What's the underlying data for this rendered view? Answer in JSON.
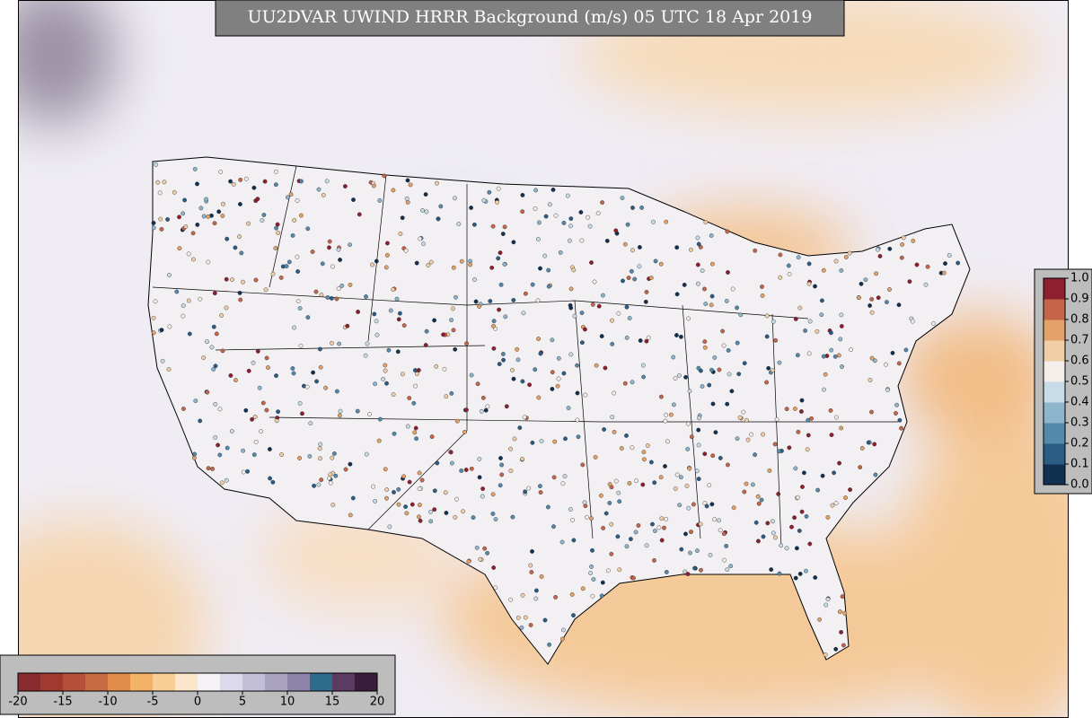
{
  "title": "UU2DVAR UWIND HRRR Background (m/s) 05 UTC 18 Apr 2019",
  "wind_colorbar": {
    "lim": [
      -20,
      20
    ],
    "ticks": [
      -20,
      -15,
      -10,
      -5,
      0,
      5,
      10,
      15,
      20
    ],
    "colors": [
      "#8a2b2e",
      "#a0392f",
      "#b4503a",
      "#c56a42",
      "#e08d4c",
      "#f3b266",
      "#f8cd96",
      "#fbe6cc",
      "#f4f2f5",
      "#dcd9ea",
      "#c3bfd9",
      "#aaa3c2",
      "#8d84a8",
      "#2e6b8c",
      "#5d3a62",
      "#3a1c3c"
    ]
  },
  "obs_colorbar": {
    "lim": [
      0,
      1
    ],
    "ticks": [
      {
        "value": 0,
        "label": "0.0"
      },
      0.1,
      0.2,
      0.3,
      0.4,
      0.5,
      0.6,
      0.7,
      0.8,
      0.9,
      {
        "value": 1,
        "label": "1.0"
      }
    ],
    "colors": [
      "#12304f",
      "#2b5c84",
      "#5389ab",
      "#8db5cb",
      "#c7dce6",
      "#f3eee9",
      "#f0cfa6",
      "#e4a268",
      "#c5664a",
      "#8e1f2f"
    ]
  }
}
